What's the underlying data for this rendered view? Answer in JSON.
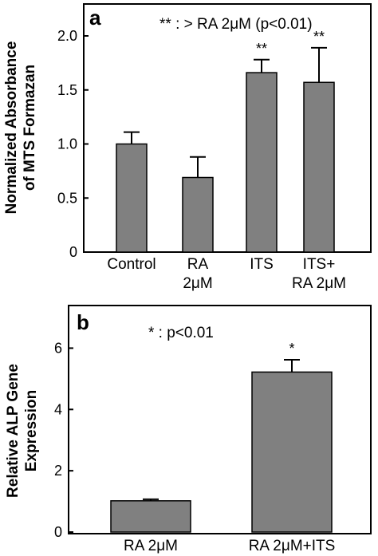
{
  "chart_data": [
    {
      "type": "bar",
      "panel_label": "a",
      "note": "** : > RA 2μM (p<0.01)",
      "ylabel_line1": "Normalized Absorbance",
      "ylabel_line2": "of MTS Formazan",
      "ylim": [
        0,
        2.0
      ],
      "yticks": [
        "0",
        "0.5",
        "1.0",
        "1.5",
        "2.0"
      ],
      "ytick_values": [
        0,
        0.5,
        1.0,
        1.5,
        2.0
      ],
      "categories": [
        {
          "line1": "Control",
          "line2": ""
        },
        {
          "line1": "RA",
          "line2": "2μM"
        },
        {
          "line1": "ITS",
          "line2": ""
        },
        {
          "line1": "ITS+",
          "line2": "RA 2μM"
        }
      ],
      "values": [
        1.0,
        0.69,
        1.66,
        1.57
      ],
      "errors": [
        0.11,
        0.19,
        0.12,
        0.32
      ],
      "significance": [
        "",
        "",
        "**",
        "**"
      ],
      "bar_color": "#808080"
    },
    {
      "type": "bar",
      "panel_label": "b",
      "note": "* : p<0.01",
      "ylabel_line1": "Relative  ALP Gene",
      "ylabel_line2": "Expression",
      "ylim": [
        0,
        7
      ],
      "yticks": [
        "0",
        "2",
        "4",
        "6"
      ],
      "ytick_values": [
        0,
        2,
        4,
        6
      ],
      "categories": [
        {
          "line1": "RA 2μM",
          "line2": ""
        },
        {
          "line1": "RA 2μM+ITS",
          "line2": ""
        }
      ],
      "values": [
        1.02,
        5.22
      ],
      "errors": [
        0.05,
        0.4
      ],
      "significance": [
        "",
        "*"
      ],
      "bar_color": "#808080"
    }
  ]
}
